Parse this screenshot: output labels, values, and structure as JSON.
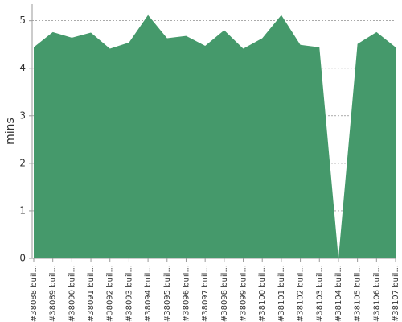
{
  "chart_data": {
    "type": "area",
    "y_label": "mins",
    "categories": [
      "#38088 buil...",
      "#38089 buil...",
      "#38090 buil...",
      "#38091 buil...",
      "#38092 buil...",
      "#38093 buil...",
      "#38094 buil...",
      "#38095 buil...",
      "#38096 buil...",
      "#38097 buil...",
      "#38098 buil...",
      "#38099 buil...",
      "#38100 buil...",
      "#38101 buil...",
      "#38102 buil...",
      "#38103 buil...",
      "#38104 buil...",
      "#38105 buil...",
      "#38106 buil...",
      "#38107 buil..."
    ],
    "series": [
      {
        "color": "#45996b",
        "values": [
          4.44,
          4.76,
          4.64,
          4.75,
          4.41,
          4.54,
          5.12,
          4.63,
          4.68,
          4.47,
          4.8,
          4.41,
          4.63,
          5.12,
          4.49,
          4.44,
          0,
          4.51,
          4.76,
          4.44
        ]
      }
    ],
    "ylim": [
      0,
      5.35
    ],
    "yticks": [
      0,
      1,
      2,
      3,
      4,
      5
    ],
    "grid": true
  }
}
